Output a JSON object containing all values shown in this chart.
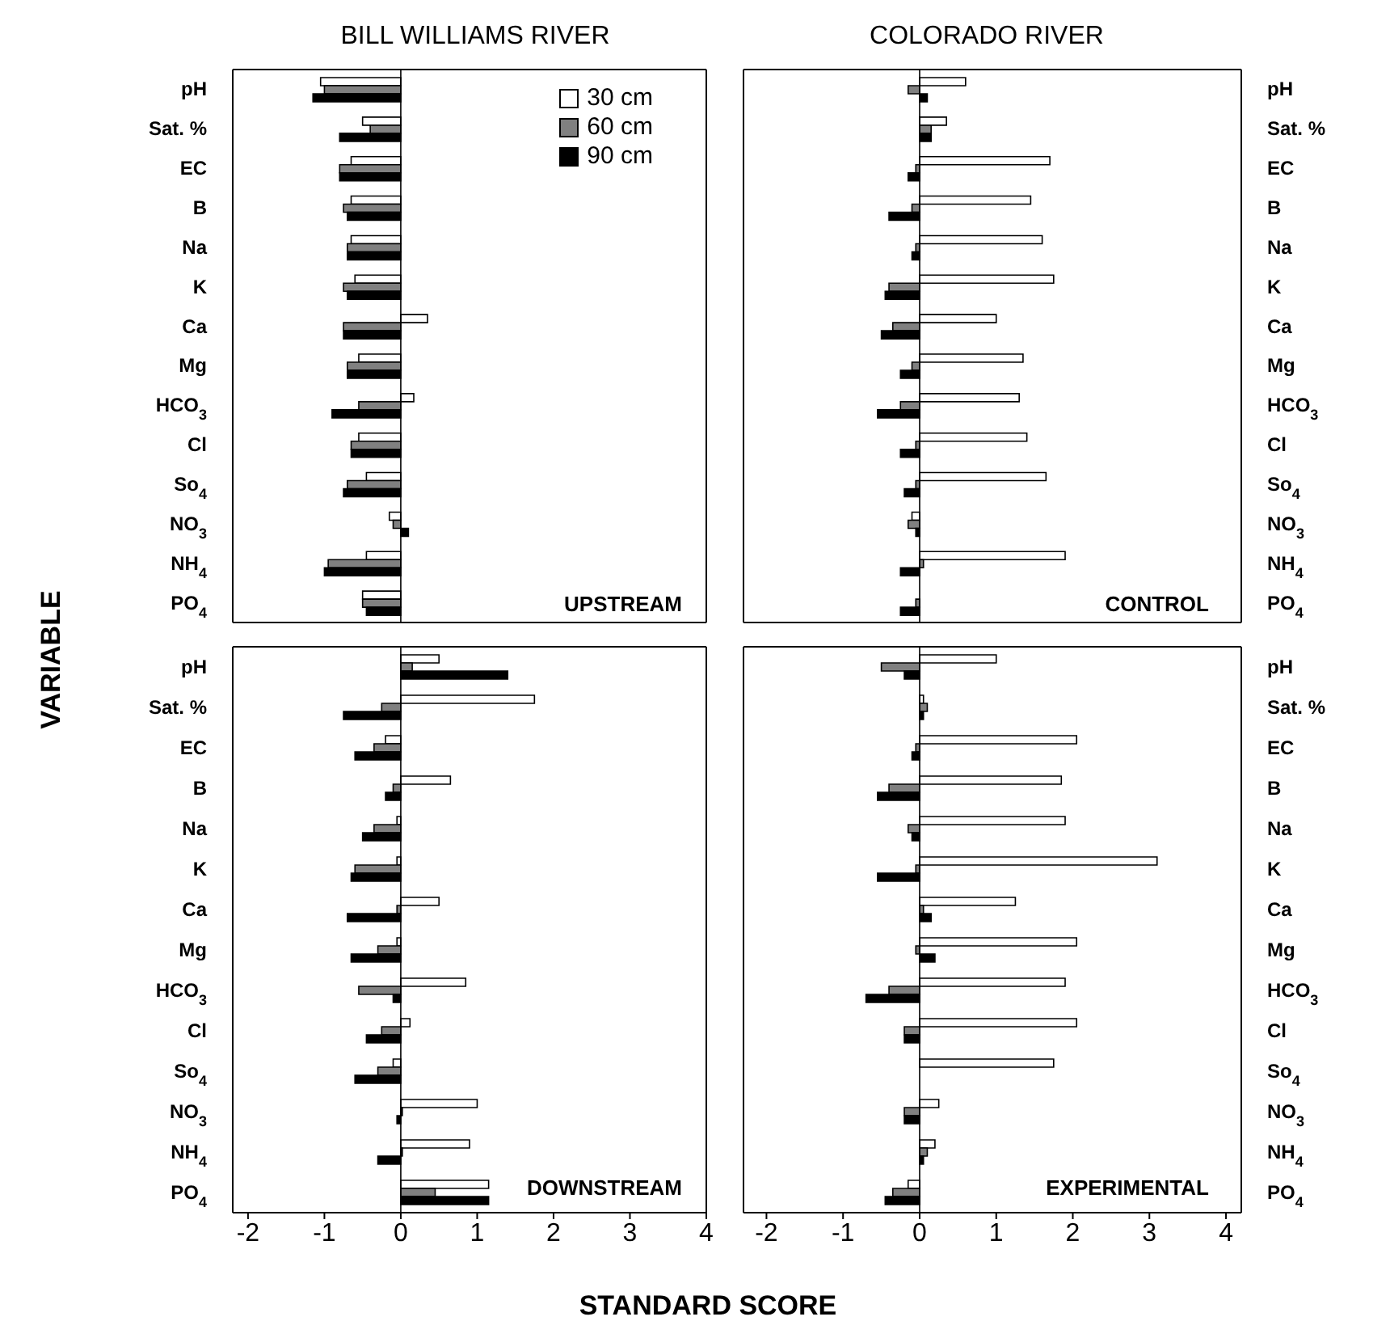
{
  "chart_data": [
    {
      "type": "bar",
      "orientation": "horizontal",
      "title": "BILL WILLIAMS RIVER",
      "ylabel": "VARIABLE",
      "annotations": [
        "UPSTREAM"
      ],
      "legend": "top right",
      "tick_labels": "y",
      "xlim": [
        -2.2,
        4.0
      ],
      "xticks": [
        -2,
        -1,
        0,
        1,
        2,
        3,
        4
      ],
      "ref_lines": [
        {
          "axis": "x",
          "value": 0
        }
      ],
      "categories": [
        "pH",
        "Sat. %",
        "EC",
        "B",
        "Na",
        "K",
        "Ca",
        "Mg",
        "HCO$_{3}$",
        "Cl",
        "So$_{4}$",
        "NO$_{3}$",
        "NH$_{4}$",
        "PO$_{4}$"
      ],
      "series": [
        {
          "name": "30 cm",
          "color": "#ffffff",
          "values": [
            -1.05,
            -0.5,
            -0.65,
            -0.65,
            -0.65,
            -0.6,
            0.35,
            -0.55,
            0.17,
            -0.55,
            -0.45,
            -0.15,
            -0.45,
            -0.5
          ]
        },
        {
          "name": "60 cm",
          "color": "#808080",
          "values": [
            -1.0,
            -0.4,
            -0.8,
            -0.75,
            -0.7,
            -0.75,
            -0.75,
            -0.7,
            -0.55,
            -0.65,
            -0.7,
            -0.1,
            -0.95,
            -0.5
          ]
        },
        {
          "name": "90 cm",
          "color": "#000000",
          "values": [
            -1.15,
            -0.8,
            -0.8,
            -0.7,
            -0.7,
            -0.7,
            -0.75,
            -0.7,
            -0.9,
            -0.65,
            -0.75,
            0.1,
            -1.0,
            -0.45
          ]
        }
      ]
    },
    {
      "type": "bar",
      "orientation": "horizontal",
      "title": "COLORADO RIVER",
      "annotations": [
        "CONTROL"
      ],
      "tick_labels": "y",
      "xlim": [
        -2.3,
        4.2
      ],
      "xticks": [
        -2,
        -1,
        0,
        1,
        2,
        3,
        4
      ],
      "ref_lines": [
        {
          "axis": "x",
          "value": 0
        }
      ],
      "categories": [
        "pH",
        "Sat. %",
        "EC",
        "B",
        "Na",
        "K",
        "Ca",
        "Mg",
        "HCO$_{3}$",
        "Cl",
        "So$_{4}$",
        "NO$_{3}$",
        "NH$_{4}$",
        "PO$_{4}$"
      ],
      "series": [
        {
          "color": "#ffffff",
          "values": [
            0.6,
            0.35,
            1.7,
            1.45,
            1.6,
            1.75,
            1.0,
            1.35,
            1.3,
            1.4,
            1.65,
            -0.1,
            1.9,
            null
          ]
        },
        {
          "color": "#808080",
          "values": [
            -0.15,
            0.15,
            -0.05,
            -0.1,
            -0.05,
            -0.4,
            -0.35,
            -0.1,
            -0.25,
            -0.05,
            -0.05,
            -0.15,
            0.05,
            -0.05
          ]
        },
        {
          "color": "#000000",
          "values": [
            0.1,
            0.15,
            -0.15,
            -0.4,
            -0.1,
            -0.45,
            -0.5,
            -0.25,
            -0.55,
            -0.25,
            -0.2,
            -0.05,
            -0.25,
            -0.25
          ]
        }
      ]
    },
    {
      "type": "bar",
      "orientation": "horizontal",
      "xlabel": "STANDARD SCORE",
      "annotations": [
        "DOWNSTREAM"
      ],
      "xlim": [
        -2.2,
        4.0
      ],
      "xticks": [
        -2,
        -1,
        0,
        1,
        2,
        3,
        4
      ],
      "ref_lines": [
        {
          "axis": "x",
          "value": 0
        }
      ],
      "categories": [
        "pH",
        "Sat. %",
        "EC",
        "B",
        "Na",
        "K",
        "Ca",
        "Mg",
        "HCO$_{3}$",
        "Cl",
        "So$_{4}$",
        "NO$_{3}$",
        "NH$_{4}$",
        "PO$_{4}$"
      ],
      "series": [
        {
          "color": "#ffffff",
          "values": [
            0.5,
            1.75,
            -0.2,
            0.65,
            -0.05,
            -0.05,
            0.5,
            -0.05,
            0.85,
            0.12,
            -0.1,
            1.0,
            0.9,
            1.15
          ]
        },
        {
          "color": "#808080",
          "values": [
            0.15,
            -0.25,
            -0.35,
            -0.1,
            -0.35,
            -0.6,
            -0.05,
            -0.3,
            -0.55,
            -0.25,
            -0.3,
            0.02,
            0.02,
            0.45
          ]
        },
        {
          "color": "#000000",
          "values": [
            1.4,
            -0.75,
            -0.6,
            -0.2,
            -0.5,
            -0.65,
            -0.7,
            -0.65,
            -0.1,
            -0.45,
            -0.6,
            -0.05,
            -0.3,
            1.15
          ]
        }
      ]
    },
    {
      "type": "bar",
      "orientation": "horizontal",
      "annotations": [
        "EXPERIMENTAL"
      ],
      "xlim": [
        -2.3,
        4.2
      ],
      "xticks": [
        -2,
        -1,
        0,
        1,
        2,
        3,
        4
      ],
      "ref_lines": [
        {
          "axis": "x",
          "value": 0
        }
      ],
      "categories": [
        "pH",
        "Sat. %",
        "EC",
        "B",
        "Na",
        "K",
        "Ca",
        "Mg",
        "HCO$_{3}$",
        "Cl",
        "So$_{4}$",
        "NO$_{3}$",
        "NH$_{4}$",
        "PO$_{4}$"
      ],
      "series": [
        {
          "color": "#ffffff",
          "values": [
            1.0,
            0.05,
            2.05,
            1.85,
            1.9,
            3.1,
            1.25,
            2.05,
            1.9,
            2.05,
            1.75,
            0.25,
            0.2,
            -0.15
          ]
        },
        {
          "color": "#808080",
          "values": [
            -0.5,
            0.1,
            -0.05,
            -0.4,
            -0.15,
            -0.05,
            0.05,
            -0.05,
            -0.4,
            -0.2,
            0.0,
            -0.2,
            0.1,
            -0.35
          ]
        },
        {
          "color": "#000000",
          "values": [
            -0.2,
            0.05,
            -0.1,
            -0.55,
            -0.1,
            -0.55,
            0.15,
            0.2,
            -0.7,
            -0.2,
            0.0,
            -0.2,
            0.05,
            -0.45
          ]
        }
      ]
    }
  ]
}
